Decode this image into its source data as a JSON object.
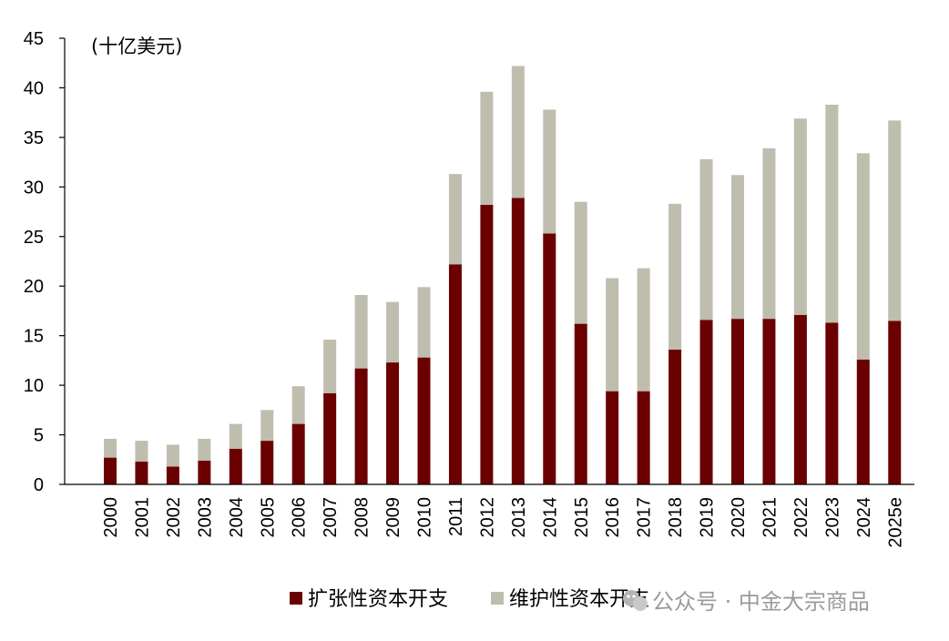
{
  "chart_data": {
    "type": "bar",
    "stacked": true,
    "unit_label": "(十亿美元)",
    "categories": [
      "2000",
      "2001",
      "2002",
      "2003",
      "2004",
      "2005",
      "2006",
      "2007",
      "2008",
      "2009",
      "2010",
      "2011",
      "2012",
      "2013",
      "2014",
      "2015",
      "2016",
      "2017",
      "2018",
      "2019",
      "2020",
      "2021",
      "2022",
      "2023",
      "2024",
      "2025e"
    ],
    "series": [
      {
        "name": "扩张性资本开支",
        "color": "#6b0000",
        "values": [
          2.7,
          2.3,
          1.8,
          2.4,
          3.6,
          4.4,
          6.1,
          9.2,
          11.7,
          12.3,
          12.8,
          22.2,
          28.2,
          28.9,
          25.3,
          16.2,
          9.4,
          9.4,
          13.6,
          16.6,
          16.7,
          16.7,
          17.1,
          16.3,
          12.6,
          16.5
        ]
      },
      {
        "name": "维护性资本开支",
        "color": "#bfbdae",
        "values": [
          1.9,
          2.1,
          2.2,
          2.2,
          2.5,
          3.1,
          3.8,
          5.4,
          7.4,
          6.1,
          7.1,
          9.1,
          11.4,
          13.3,
          12.5,
          12.3,
          11.4,
          12.4,
          14.7,
          16.2,
          14.5,
          17.2,
          19.8,
          22.0,
          20.8,
          20.2
        ]
      }
    ],
    "ylim": [
      0,
      45
    ],
    "yticks": [
      0,
      5,
      10,
      15,
      20,
      25,
      30,
      35,
      40,
      45
    ],
    "xlabel": "",
    "ylabel": "",
    "grid": false,
    "legend_position": "bottom-center"
  },
  "watermark": {
    "text": "公众号 · 中金大宗商品",
    "color": "#9a9a9a"
  }
}
